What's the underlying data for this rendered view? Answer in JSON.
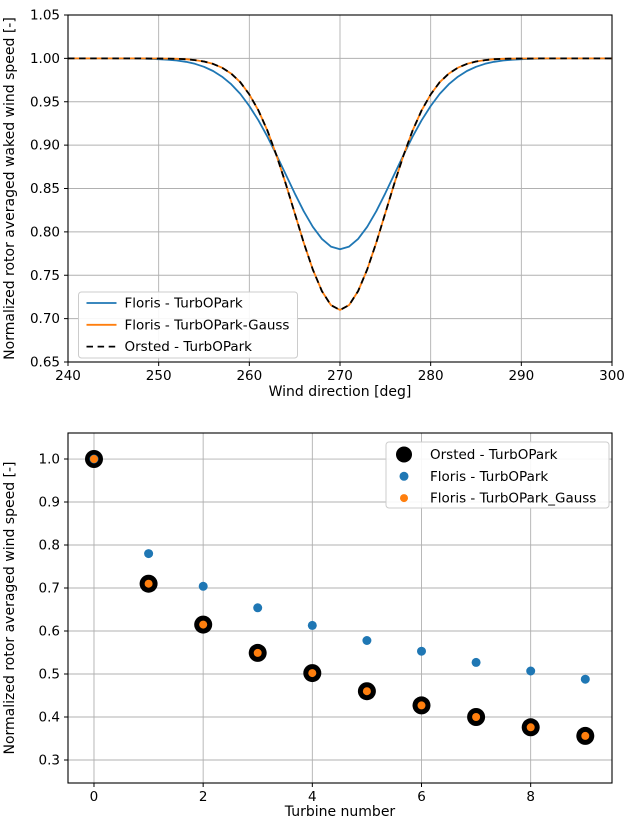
{
  "colors": {
    "blue": "#1f77b4",
    "orange": "#ff7f0e",
    "black": "#000000",
    "grid": "#b0b0b0",
    "spine": "#000000",
    "legend_border": "#cccccc",
    "background": "#ffffff"
  },
  "chart_data": [
    {
      "id": "wake-profile-chart",
      "type": "line",
      "title": "",
      "xlabel": "Wind direction [deg]",
      "ylabel": "Normalized rotor averaged waked wind speed [-]",
      "xlim": [
        240,
        300
      ],
      "ylim": [
        0.65,
        1.05
      ],
      "grid": true,
      "legend_position": "lower-left",
      "xticks": {
        "values": [
          240,
          250,
          260,
          270,
          280,
          290,
          300
        ],
        "labels": [
          "240",
          "250",
          "260",
          "270",
          "280",
          "290",
          "300"
        ]
      },
      "yticks": {
        "values": [
          0.65,
          0.7,
          0.75,
          0.8,
          0.85,
          0.9,
          0.95,
          1.0,
          1.05
        ],
        "labels": [
          "0.65",
          "0.70",
          "0.75",
          "0.80",
          "0.85",
          "0.90",
          "0.95",
          "1.00",
          "1.05"
        ]
      },
      "x": [
        240,
        241,
        242,
        243,
        244,
        245,
        246,
        247,
        248,
        249,
        250,
        251,
        252,
        253,
        254,
        255,
        256,
        257,
        258,
        259,
        260,
        261,
        262,
        263,
        264,
        265,
        266,
        267,
        268,
        269,
        270,
        271,
        272,
        273,
        274,
        275,
        276,
        277,
        278,
        279,
        280,
        281,
        282,
        283,
        284,
        285,
        286,
        287,
        288,
        289,
        290,
        291,
        292,
        293,
        294,
        295,
        296,
        297,
        298,
        299,
        300
      ],
      "series": [
        {
          "name": "Floris - TurbOPark",
          "color": "#1f77b4",
          "line_style": "solid",
          "values": [
            1,
            1,
            1,
            1,
            1,
            1,
            0.9999,
            0.9999,
            0.9997,
            0.9995,
            0.9991,
            0.9985,
            0.9976,
            0.996,
            0.9937,
            0.9903,
            0.9855,
            0.9789,
            0.9702,
            0.959,
            0.9451,
            0.9286,
            0.9096,
            0.8886,
            0.8666,
            0.8445,
            0.8238,
            0.8059,
            0.7919,
            0.783,
            0.78,
            0.783,
            0.7919,
            0.8059,
            0.8238,
            0.8445,
            0.8666,
            0.8886,
            0.9096,
            0.9286,
            0.9451,
            0.959,
            0.9702,
            0.9789,
            0.9855,
            0.9903,
            0.9937,
            0.996,
            0.9976,
            0.9985,
            0.9991,
            0.9995,
            0.9997,
            0.9999,
            0.9999,
            1,
            1,
            1,
            1,
            1,
            1
          ]
        },
        {
          "name": "Floris - TurbOPark-Gauss",
          "color": "#ff7f0e",
          "line_style": "solid",
          "values": [
            1,
            1,
            1,
            1,
            1,
            1,
            1,
            1,
            1,
            0.9999,
            0.9999,
            0.9997,
            0.9995,
            0.999,
            0.998,
            0.9964,
            0.9936,
            0.9892,
            0.9824,
            0.9725,
            0.9585,
            0.94,
            0.9165,
            0.8882,
            0.856,
            0.8217,
            0.7876,
            0.7566,
            0.7317,
            0.7156,
            0.71,
            0.7156,
            0.7317,
            0.7566,
            0.7876,
            0.8217,
            0.856,
            0.8882,
            0.9165,
            0.94,
            0.9585,
            0.9725,
            0.9824,
            0.9892,
            0.9936,
            0.9964,
            0.998,
            0.999,
            0.9995,
            0.9997,
            0.9999,
            0.9999,
            1,
            1,
            1,
            1,
            1,
            1,
            1,
            1,
            1
          ]
        },
        {
          "name": "Orsted - TurbOPark",
          "color": "#000000",
          "line_style": "dashed",
          "values": [
            1,
            1,
            1,
            1,
            1,
            1,
            1,
            1,
            1,
            0.9999,
            0.9999,
            0.9997,
            0.9995,
            0.999,
            0.998,
            0.9964,
            0.9936,
            0.9892,
            0.9824,
            0.9725,
            0.9585,
            0.94,
            0.9165,
            0.8882,
            0.856,
            0.8217,
            0.7876,
            0.7566,
            0.7317,
            0.7156,
            0.71,
            0.7156,
            0.7317,
            0.7566,
            0.7876,
            0.8217,
            0.856,
            0.8882,
            0.9165,
            0.94,
            0.9585,
            0.9725,
            0.9824,
            0.9892,
            0.9936,
            0.9964,
            0.998,
            0.999,
            0.9995,
            0.9997,
            0.9999,
            0.9999,
            1,
            1,
            1,
            1,
            1,
            1,
            1,
            1,
            1
          ]
        }
      ]
    },
    {
      "id": "turbine-speed-chart",
      "type": "scatter",
      "title": "",
      "xlabel": "Turbine number",
      "ylabel": "Normalized rotor averaged wind speed [-]",
      "xlim": [
        -0.476,
        9.49
      ],
      "ylim": [
        0.2465,
        1.0605
      ],
      "grid": true,
      "legend_position": "upper-right",
      "xticks": {
        "values": [
          0,
          2,
          4,
          6,
          8
        ],
        "labels": [
          "0",
          "2",
          "4",
          "6",
          "8"
        ]
      },
      "yticks": {
        "values": [
          0.3,
          0.4,
          0.5,
          0.6,
          0.7,
          0.8,
          0.9,
          1.0
        ],
        "labels": [
          "0.3",
          "0.4",
          "0.5",
          "0.6",
          "0.7",
          "0.8",
          "0.9",
          "1.0"
        ]
      },
      "x": [
        0,
        1,
        2,
        3,
        4,
        5,
        6,
        7,
        8,
        9
      ],
      "series": [
        {
          "name": "Orsted - TurbOPark",
          "color": "#000000",
          "marker_size": 9,
          "values": [
            1.0,
            0.71,
            0.615,
            0.549,
            0.502,
            0.46,
            0.427,
            0.4,
            0.376,
            0.356
          ]
        },
        {
          "name": "Floris - TurbOPark",
          "color": "#1f77b4",
          "marker_size": 4.5,
          "values": [
            1.0,
            0.78,
            0.704,
            0.654,
            0.613,
            0.578,
            0.553,
            0.527,
            0.507,
            0.488
          ]
        },
        {
          "name": "Floris - TurbOPark_Gauss",
          "color": "#ff7f0e",
          "marker_size": 4,
          "values": [
            1.0,
            0.71,
            0.615,
            0.549,
            0.502,
            0.46,
            0.427,
            0.4,
            0.376,
            0.356
          ]
        }
      ]
    }
  ]
}
